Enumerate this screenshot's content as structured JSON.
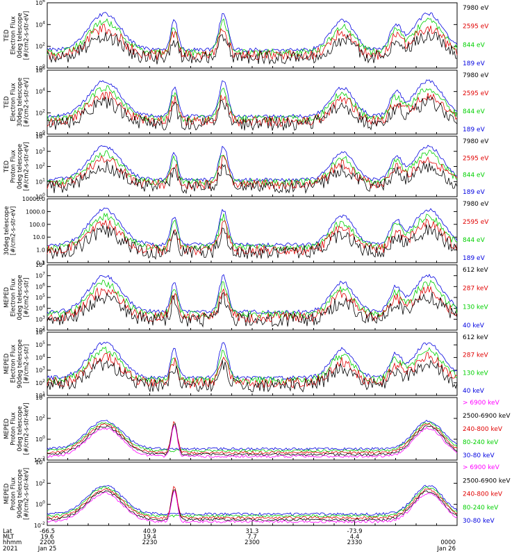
{
  "chart_data": {
    "type": "line",
    "colors": {
      "black": "#000000",
      "red": "#e00000",
      "green": "#00d000",
      "blue": "#0000e0",
      "magenta": "#ff00ff"
    },
    "panels": [
      {
        "ylabel": [
          "TED",
          "Electron Flux",
          "0deg telescope",
          "[#/cm2-s-str-eV]"
        ],
        "yticks": [
          "10^6",
          "10^4",
          "10^2",
          "10^0"
        ],
        "log_decades": 6,
        "legend": [
          {
            "text": "7980 eV",
            "color": "black"
          },
          {
            "text": "2595 eV",
            "color": "red"
          },
          {
            "text": "844 eV",
            "color": "green"
          },
          {
            "text": "189 eV",
            "color": "blue"
          }
        ]
      },
      {
        "ylabel": [
          "TED",
          "Electron Flux",
          "30deg telescope",
          "[#/cm2-s-str-eV]"
        ],
        "yticks": [
          "10^6",
          "10^4",
          "10^2",
          "10^0"
        ],
        "log_decades": 6,
        "legend": [
          {
            "text": "7980 eV",
            "color": "black"
          },
          {
            "text": "2595 eV",
            "color": "red"
          },
          {
            "text": "844 eV",
            "color": "green"
          },
          {
            "text": "189 eV",
            "color": "blue"
          }
        ]
      },
      {
        "ylabel": [
          "TED",
          "Proton Flux",
          "0deg telescope",
          "[#/cm2-s-str-eV]"
        ],
        "yticks": [
          "10^4",
          "10^3",
          "10^2",
          "10^1",
          "10^0"
        ],
        "log_decades": 4,
        "legend": [
          {
            "text": "7980 eV",
            "color": "black"
          },
          {
            "text": "2595 eV",
            "color": "red"
          },
          {
            "text": "844 eV",
            "color": "green"
          },
          {
            "text": "189 eV",
            "color": "blue"
          }
        ]
      },
      {
        "ylabel": [
          "30deg telescope",
          "[#/cm2-s-str-eV]"
        ],
        "yticks": [
          "10000.0",
          "1000.0",
          "100.0",
          "10.0",
          "1.0",
          "0.1"
        ],
        "log_decades": 5,
        "legend": [
          {
            "text": "7980 eV",
            "color": "black"
          },
          {
            "text": "2595 eV",
            "color": "red"
          },
          {
            "text": "844 eV",
            "color": "green"
          },
          {
            "text": "189 eV",
            "color": "blue"
          }
        ]
      },
      {
        "ylabel": [
          "MEPED",
          "Electron Flux",
          "0deg telescope",
          "[#/cm2-s-str]"
        ],
        "yticks": [
          "10^8",
          "10^7",
          "10^6",
          "10^5",
          "10^4",
          "10^3",
          "10^2"
        ],
        "log_decades": 6,
        "legend": [
          {
            "text": "612 keV",
            "color": "black"
          },
          {
            "text": "287 keV",
            "color": "red"
          },
          {
            "text": "130 keV",
            "color": "green"
          },
          {
            "text": "40 keV",
            "color": "blue"
          }
        ]
      },
      {
        "ylabel": [
          "MEPED",
          "Electron Flux",
          "90deg telescope",
          "[#/cm2-s-str]"
        ],
        "yticks": [
          "10^6",
          "10^5",
          "10^4",
          "10^3",
          "10^2",
          "10^1"
        ],
        "log_decades": 5,
        "legend": [
          {
            "text": "612 keV",
            "color": "black"
          },
          {
            "text": "287 keV",
            "color": "red"
          },
          {
            "text": "130 keV",
            "color": "green"
          },
          {
            "text": "40 keV",
            "color": "blue"
          }
        ]
      },
      {
        "ylabel": [
          "MEPED",
          "Proton Flux",
          "0deg telescope",
          "[#/cm2-s-str-keV]"
        ],
        "yticks": [
          "10^4",
          "10^2",
          "10^0",
          "10^-2"
        ],
        "log_decades": 6,
        "legend": [
          {
            "text": "> 6900 keV",
            "color": "magenta"
          },
          {
            "text": "2500-6900 keV",
            "color": "black"
          },
          {
            "text": "240-800 keV",
            "color": "red"
          },
          {
            "text": "80-240 keV",
            "color": "green"
          },
          {
            "text": "30-80 keV",
            "color": "blue"
          }
        ]
      },
      {
        "ylabel": [
          "MEPED",
          "Proton Flux",
          "90deg telescope",
          "[#/cm2-s-str-keV]"
        ],
        "yticks": [
          "10^4",
          "10^2",
          "10^0",
          "10^-2"
        ],
        "log_decades": 6,
        "legend": [
          {
            "text": "> 6900 keV",
            "color": "magenta"
          },
          {
            "text": "2500-6900 keV",
            "color": "black"
          },
          {
            "text": "240-800 keV",
            "color": "red"
          },
          {
            "text": "80-240 keV",
            "color": "green"
          },
          {
            "text": "30-80 keV",
            "color": "blue"
          }
        ]
      }
    ],
    "x_axis": {
      "row_labels": [
        "Lat",
        "MLT",
        "hhmm",
        "2021"
      ],
      "ticks": [
        {
          "lat": "-66.5",
          "mlt": "19.6",
          "hhmm": "2200",
          "date": "Jan 25"
        },
        {
          "lat": "40.9",
          "mlt": "19.4",
          "hhmm": "2230",
          "date": ""
        },
        {
          "lat": "31.3",
          "mlt": "7.7",
          "hhmm": "2300",
          "date": ""
        },
        {
          "lat": "-73.9",
          "mlt": "4.4",
          "hhmm": "2330",
          "date": ""
        },
        {
          "lat": "",
          "mlt": "",
          "hhmm": "0000",
          "date": "Jan 26"
        }
      ]
    }
  }
}
